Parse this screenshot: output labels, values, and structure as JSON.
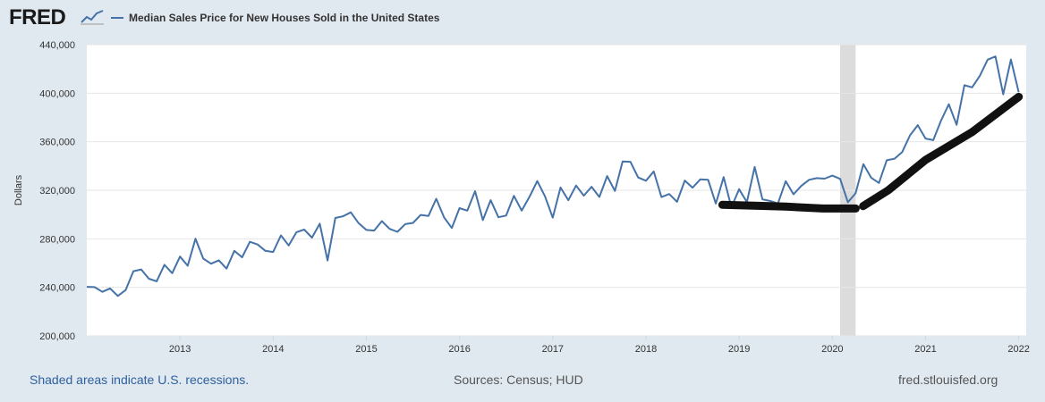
{
  "brand": {
    "logo_text": "FRED"
  },
  "footer": {
    "recession_note": "Shaded areas indicate U.S. recessions.",
    "sources": "Sources: Census; HUD",
    "site": "fred.stlouisfed.org"
  },
  "colors": {
    "series": "#4572a7",
    "recession": "#dcdcdc",
    "annotation": "#111111",
    "background": "#e1e9f0"
  },
  "chart_data": {
    "type": "line",
    "title": "Median Sales Price for New Houses Sold in the United States",
    "xlabel": "",
    "ylabel": "Dollars",
    "xlim": [
      2012.0,
      2022.08
    ],
    "ylim": [
      200000,
      440000
    ],
    "grid": true,
    "legend": "top-left",
    "x_ticks": [
      2013,
      2014,
      2015,
      2016,
      2017,
      2018,
      2019,
      2020,
      2021,
      2022
    ],
    "x_tick_labels": [
      "2013",
      "2014",
      "2015",
      "2016",
      "2017",
      "2018",
      "2019",
      "2020",
      "2021",
      "2022"
    ],
    "y_ticks": [
      200000,
      240000,
      280000,
      320000,
      360000,
      400000,
      440000
    ],
    "y_tick_labels": [
      "200,000",
      "240,000",
      "280,000",
      "320,000",
      "360,000",
      "400,000",
      "440,000"
    ],
    "recessions": [
      {
        "start": 2020.083,
        "end": 2020.25
      }
    ],
    "series": [
      {
        "name": "Median Sales Price for New Houses Sold in the United States",
        "x_start": 2012.0,
        "x_step": 0.08333,
        "values": [
          240400,
          240200,
          236300,
          239200,
          232900,
          237800,
          253300,
          254800,
          247100,
          245000,
          258600,
          251700,
          265400,
          257800,
          280100,
          263700,
          259500,
          262300,
          255400,
          270100,
          264800,
          277500,
          275300,
          270100,
          269100,
          282800,
          274500,
          285500,
          287600,
          281000,
          292500,
          262100,
          297200,
          298600,
          301800,
          292900,
          287300,
          286800,
          294600,
          288200,
          285800,
          292100,
          293100,
          299700,
          298900,
          313000,
          297700,
          288900,
          305300,
          303200,
          319300,
          295400,
          311800,
          297800,
          299200,
          315400,
          303200,
          314600,
          327600,
          315100,
          297500,
          322300,
          311800,
          323900,
          315600,
          322900,
          314500,
          331700,
          319500,
          343700,
          343500,
          330500,
          327900,
          335500,
          314400,
          316900,
          310500,
          328000,
          322100,
          329000,
          328700,
          309000,
          330800,
          306000,
          320900,
          310300,
          339200,
          312600,
          311200,
          309100,
          327500,
          316700,
          323600,
          328600,
          330000,
          329600,
          332100,
          329400,
          310100,
          317500,
          341500,
          330400,
          326000,
          344700,
          346000,
          351500,
          365300,
          373700,
          362600,
          361300,
          377400,
          390900,
          374000,
          406600,
          404800,
          414400,
          427600,
          430300,
          399100,
          427800,
          400800
        ]
      }
    ],
    "annotations": [
      {
        "type": "hand-drawn-line",
        "points": [
          [
            2018.82,
            308000
          ],
          [
            2019.5,
            306500
          ],
          [
            2019.9,
            305000
          ],
          [
            2020.25,
            305000
          ]
        ]
      },
      {
        "type": "hand-drawn-line",
        "points": [
          [
            2020.33,
            307000
          ],
          [
            2020.6,
            320000
          ],
          [
            2021.0,
            345000
          ],
          [
            2021.5,
            368000
          ],
          [
            2022.0,
            397000
          ]
        ]
      }
    ]
  }
}
